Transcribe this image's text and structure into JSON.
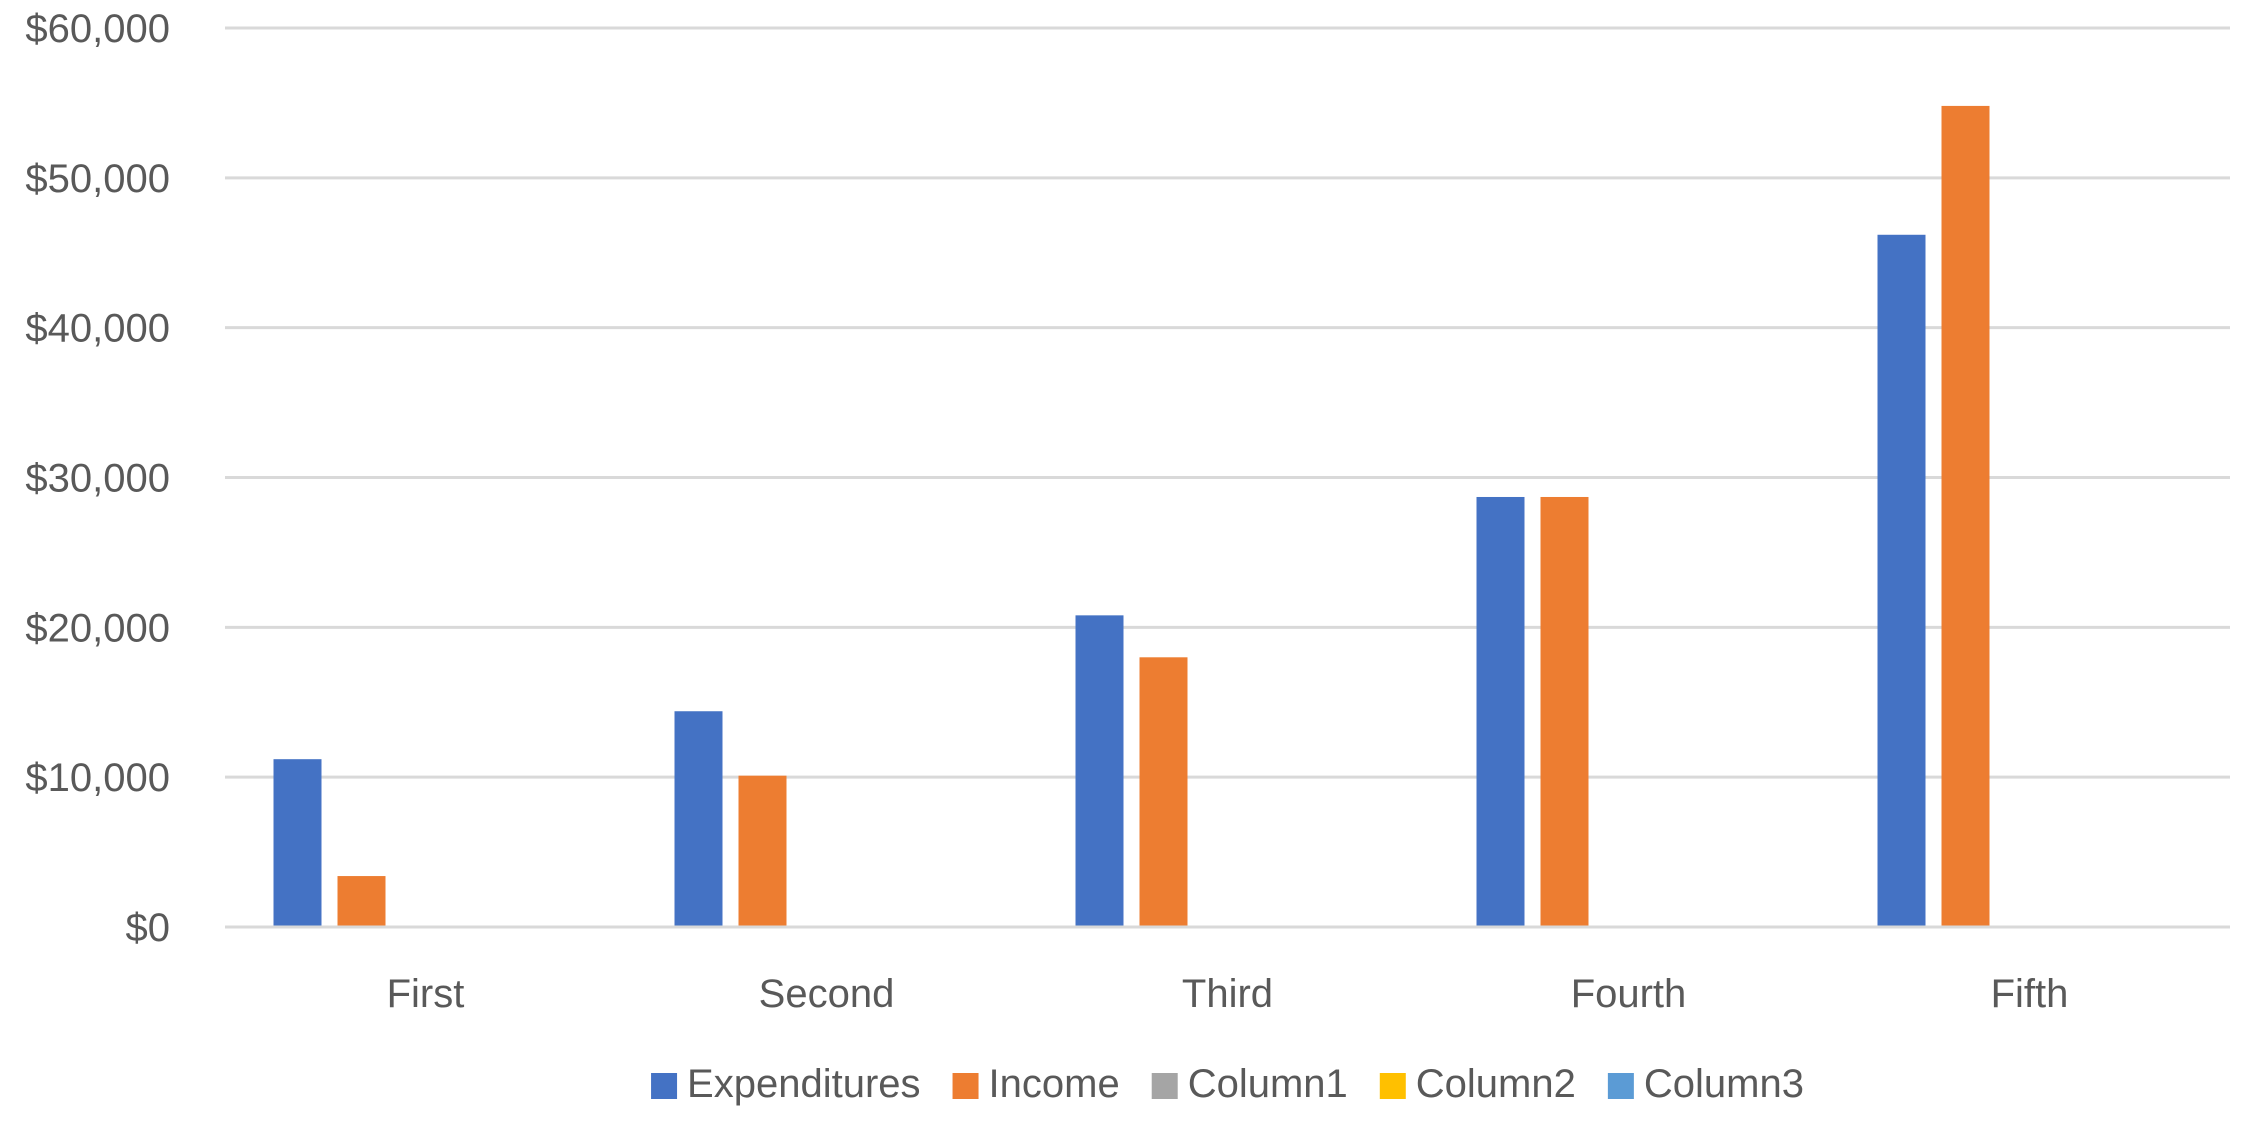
{
  "chart_data": {
    "type": "bar",
    "title": "",
    "xlabel": "",
    "ylabel": "",
    "categories": [
      "First",
      "Second",
      "Third",
      "Fourth",
      "Fifth"
    ],
    "series": [
      {
        "name": "Expenditures",
        "color": "#4472c4",
        "values": [
          11200,
          14400,
          20800,
          28700,
          46200
        ]
      },
      {
        "name": "Income",
        "color": "#ed7d31",
        "values": [
          3400,
          10100,
          18000,
          28700,
          54800
        ]
      },
      {
        "name": "Column1",
        "color": "#a5a5a5",
        "values": [
          0,
          0,
          0,
          0,
          0
        ]
      },
      {
        "name": "Column2",
        "color": "#ffc000",
        "values": [
          0,
          0,
          0,
          0,
          0
        ]
      },
      {
        "name": "Column3",
        "color": "#5b9bd5",
        "values": [
          0,
          0,
          0,
          0,
          0
        ]
      }
    ],
    "ylim": [
      0,
      60000
    ],
    "yticks": [
      0,
      10000,
      20000,
      30000,
      40000,
      50000,
      60000
    ],
    "ytick_labels": [
      "$0",
      "$10,000",
      "$20,000",
      "$30,000",
      "$40,000",
      "$50,000",
      "$60,000"
    ],
    "grid": true,
    "legend_position": "bottom",
    "legend": [
      {
        "label": "Expenditures",
        "color": "#4472c4"
      },
      {
        "label": "Income",
        "color": "#ed7d31"
      },
      {
        "label": "Column1",
        "color": "#a5a5a5"
      },
      {
        "label": "Column2",
        "color": "#ffc000"
      },
      {
        "label": "Column3",
        "color": "#5b9bd5"
      }
    ]
  }
}
